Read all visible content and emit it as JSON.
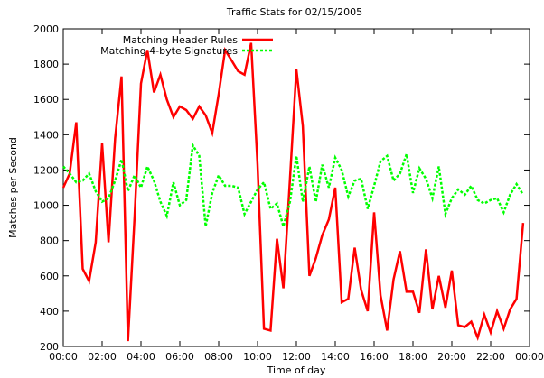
{
  "chart_data": {
    "type": "line",
    "title": "Traffic Stats for 02/15/2005",
    "xlabel": "Time of day",
    "ylabel": "Matches per Second",
    "ylim": [
      200,
      2000
    ],
    "xlim": [
      0,
      24
    ],
    "yticks": [
      200,
      400,
      600,
      800,
      1000,
      1200,
      1400,
      1600,
      1800,
      2000
    ],
    "xticks": [
      {
        "v": 0,
        "label": "00:00"
      },
      {
        "v": 2,
        "label": "02:00"
      },
      {
        "v": 4,
        "label": "04:00"
      },
      {
        "v": 6,
        "label": "06:00"
      },
      {
        "v": 8,
        "label": "08:00"
      },
      {
        "v": 10,
        "label": "10:00"
      },
      {
        "v": 12,
        "label": "12:00"
      },
      {
        "v": 14,
        "label": "14:00"
      },
      {
        "v": 16,
        "label": "16:00"
      },
      {
        "v": 18,
        "label": "18:00"
      },
      {
        "v": 20,
        "label": "20:00"
      },
      {
        "v": 22,
        "label": "22:00"
      },
      {
        "v": 24,
        "label": "00:00"
      }
    ],
    "legend_position": "top-left",
    "series": [
      {
        "name": "Matching Header Rules",
        "color": "#ff0000",
        "style": "solid",
        "x": [
          0,
          0.33,
          0.67,
          1.0,
          1.33,
          1.67,
          2.0,
          2.33,
          2.67,
          3.0,
          3.33,
          3.67,
          4.0,
          4.33,
          4.67,
          5.0,
          5.33,
          5.67,
          6.0,
          6.33,
          6.67,
          7.0,
          7.33,
          7.67,
          8.0,
          8.33,
          8.67,
          9.0,
          9.33,
          9.67,
          10.0,
          10.33,
          10.67,
          11.0,
          11.33,
          11.67,
          12.0,
          12.33,
          12.67,
          13.0,
          13.33,
          13.67,
          14.0,
          14.33,
          14.67,
          15.0,
          15.33,
          15.67,
          16.0,
          16.33,
          16.67,
          17.0,
          17.33,
          17.67,
          18.0,
          18.33,
          18.67,
          19.0,
          19.33,
          19.67,
          20.0,
          20.33,
          20.67,
          21.0,
          21.33,
          21.67,
          22.0,
          22.33,
          22.67,
          23.0,
          23.33,
          23.67
        ],
        "y": [
          1100,
          1180,
          1470,
          640,
          570,
          790,
          1350,
          790,
          1380,
          1730,
          230,
          930,
          1690,
          1880,
          1640,
          1740,
          1600,
          1500,
          1560,
          1540,
          1490,
          1560,
          1510,
          1410,
          1630,
          1880,
          1820,
          1760,
          1740,
          1920,
          1230,
          300,
          290,
          810,
          530,
          1150,
          1770,
          1450,
          600,
          700,
          830,
          920,
          1100,
          450,
          470,
          760,
          520,
          400,
          960,
          490,
          290,
          580,
          740,
          510,
          510,
          390,
          750,
          410,
          600,
          420,
          630,
          320,
          310,
          340,
          250,
          380,
          280,
          400,
          300,
          410,
          470,
          900
        ]
      },
      {
        "name": "Matching 4-byte Signatures",
        "color": "#00ff00",
        "style": "dashed",
        "x": [
          0,
          0.33,
          0.67,
          1.0,
          1.33,
          1.67,
          2.0,
          2.33,
          2.67,
          3.0,
          3.33,
          3.67,
          4.0,
          4.33,
          4.67,
          5.0,
          5.33,
          5.67,
          6.0,
          6.33,
          6.67,
          7.0,
          7.33,
          7.67,
          8.0,
          8.33,
          8.67,
          9.0,
          9.33,
          9.67,
          10.0,
          10.33,
          10.67,
          11.0,
          11.33,
          11.67,
          12.0,
          12.33,
          12.67,
          13.0,
          13.33,
          13.67,
          14.0,
          14.33,
          14.67,
          15.0,
          15.33,
          15.67,
          16.0,
          16.33,
          16.67,
          17.0,
          17.33,
          17.67,
          18.0,
          18.33,
          18.67,
          19.0,
          19.33,
          19.67,
          20.0,
          20.33,
          20.67,
          21.0,
          21.33,
          21.67,
          22.0,
          22.33,
          22.67,
          23.0,
          23.33,
          23.67
        ],
        "y": [
          1220,
          1180,
          1130,
          1140,
          1180,
          1080,
          1020,
          1040,
          1140,
          1260,
          1080,
          1170,
          1100,
          1220,
          1140,
          1020,
          940,
          1130,
          1000,
          1030,
          1340,
          1280,
          880,
          1070,
          1170,
          1110,
          1110,
          1100,
          950,
          1020,
          1090,
          1130,
          980,
          1010,
          880,
          1020,
          1280,
          1020,
          1220,
          1020,
          1230,
          1100,
          1270,
          1200,
          1050,
          1140,
          1150,
          980,
          1110,
          1250,
          1280,
          1140,
          1180,
          1290,
          1070,
          1210,
          1150,
          1040,
          1220,
          950,
          1040,
          1090,
          1060,
          1110,
          1030,
          1010,
          1030,
          1040,
          960,
          1060,
          1120,
          1060
        ]
      }
    ]
  }
}
